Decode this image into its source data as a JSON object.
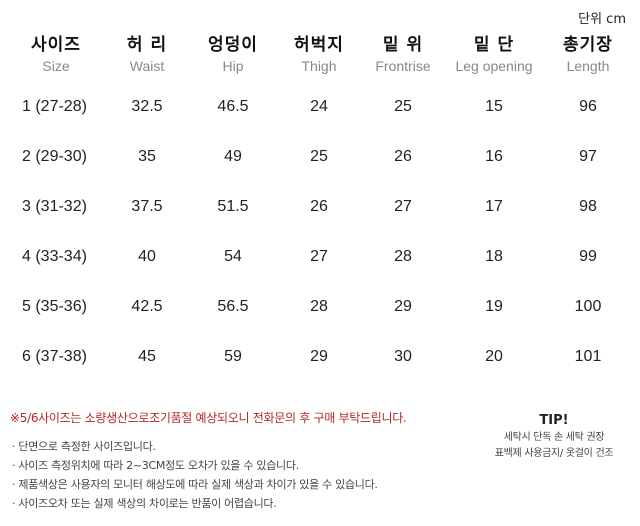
{
  "unit_label": "단위 cm",
  "columns": [
    {
      "ko": "사이즈",
      "en": "Size"
    },
    {
      "ko": "허 리",
      "en": "Waist"
    },
    {
      "ko": "엉덩이",
      "en": "Hip"
    },
    {
      "ko": "허벅지",
      "en": "Thigh"
    },
    {
      "ko": "밑 위",
      "en": "Frontrise"
    },
    {
      "ko": "밑 단",
      "en": "Leg opening"
    },
    {
      "ko": "총기장",
      "en": "Length"
    }
  ],
  "rows": [
    {
      "size": "1 (27-28)",
      "waist": "32.5",
      "hip": "46.5",
      "thigh": "24",
      "frontrise": "25",
      "leg_opening": "15",
      "length": "96"
    },
    {
      "size": "2 (29-30)",
      "waist": "35",
      "hip": "49",
      "thigh": "25",
      "frontrise": "26",
      "leg_opening": "16",
      "length": "97"
    },
    {
      "size": "3 (31-32)",
      "waist": "37.5",
      "hip": "51.5",
      "thigh": "26",
      "frontrise": "27",
      "leg_opening": "17",
      "length": "98"
    },
    {
      "size": "4 (33-34)",
      "waist": "40",
      "hip": "54",
      "thigh": "27",
      "frontrise": "28",
      "leg_opening": "18",
      "length": "99"
    },
    {
      "size": "5 (35-36)",
      "waist": "42.5",
      "hip": "56.5",
      "thigh": "28",
      "frontrise": "29",
      "leg_opening": "19",
      "length": "100"
    },
    {
      "size": "6 (37-38)",
      "waist": "45",
      "hip": "59",
      "thigh": "29",
      "frontrise": "30",
      "leg_opening": "20",
      "length": "101"
    }
  ],
  "notice": "※5/6사이즈는 소량생산으로조기품절 예상되오니 전화문의 후 구매 부탁드립니다.",
  "notes": [
    "· 단면으로 측정한 사이즈입니다.",
    "· 사이즈 측정위치에 따라 2~3CM정도 오차가 있을 수 있습니다.",
    "· 제품색상은 사용자의 모니터 해상도에 따라 실제 색상과 차이가 있을 수 있습니다.",
    "· 사이즈오차 또는 실제 색상의 차이로는 반품이 어렵습니다."
  ],
  "tip": {
    "title": "TIP!",
    "line1": "세탁시 단독 손 세탁 권장",
    "line2": "표백제 사용금지/ 옷걸이 건조"
  },
  "colors": {
    "notice": "#b52828",
    "english_header": "#888888"
  }
}
